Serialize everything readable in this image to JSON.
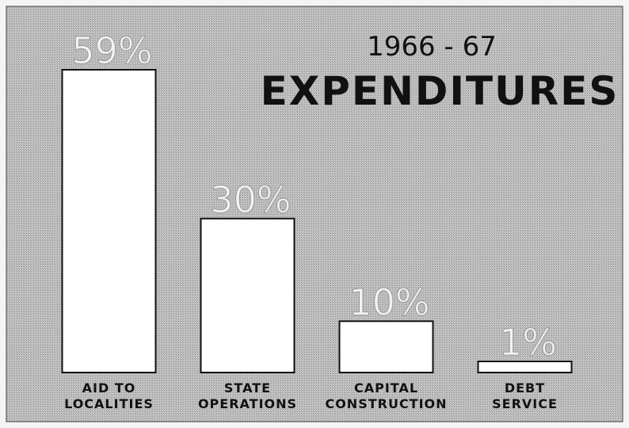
{
  "chart_data": {
    "type": "bar",
    "title": "EXPENDITURES",
    "subtitle": "1966 - 67",
    "categories": [
      "AID TO\nLOCALITIES",
      "STATE\nOPERATIONS",
      "CAPITAL\nCONSTRUCTION",
      "DEBT\nSERVICE"
    ],
    "values": [
      59,
      30,
      10,
      1
    ],
    "value_labels": [
      "59%",
      "30%",
      "10%",
      "1%"
    ],
    "color": "#ffffff"
  }
}
